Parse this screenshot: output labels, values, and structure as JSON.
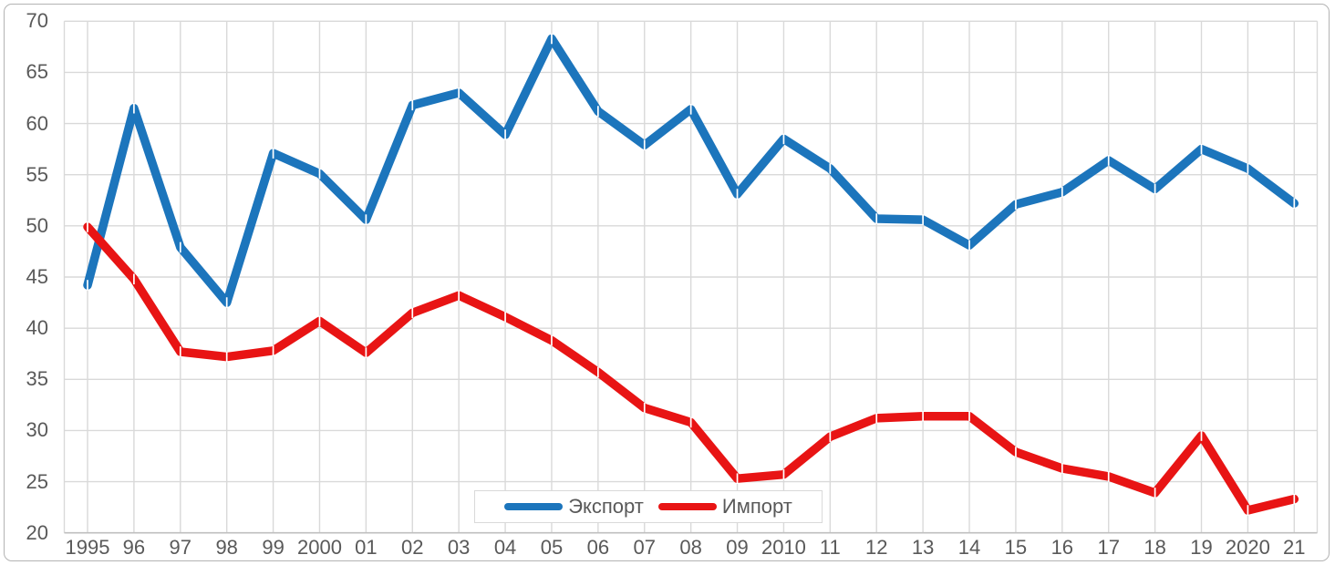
{
  "chart_data": {
    "type": "line",
    "title": "",
    "xlabel": "",
    "ylabel": "",
    "categories": [
      "1995",
      "96",
      "97",
      "98",
      "99",
      "2000",
      "01",
      "02",
      "03",
      "04",
      "05",
      "06",
      "07",
      "08",
      "09",
      "2010",
      "11",
      "12",
      "13",
      "14",
      "15",
      "16",
      "17",
      "18",
      "19",
      "2020",
      "21"
    ],
    "series": [
      {
        "name": "Экспорт",
        "color": "#1c75bc",
        "values": [
          44.2,
          61.5,
          47.9,
          42.5,
          57.1,
          55.1,
          50.6,
          61.8,
          63.0,
          58.9,
          68.3,
          61.2,
          57.9,
          61.4,
          53.1,
          58.5,
          55.6,
          50.7,
          50.6,
          48.1,
          52.1,
          53.3,
          56.4,
          53.6,
          57.5,
          55.6,
          52.2
        ]
      },
      {
        "name": "Импорт",
        "color": "#e81414",
        "values": [
          49.9,
          44.8,
          37.7,
          37.2,
          37.8,
          40.7,
          37.6,
          41.5,
          43.2,
          41.1,
          38.8,
          35.7,
          32.2,
          30.8,
          25.3,
          25.7,
          29.4,
          31.2,
          31.4,
          31.4,
          27.9,
          26.3,
          25.5,
          23.9,
          29.5,
          22.2,
          23.3
        ]
      }
    ],
    "ylim": [
      20,
      70
    ],
    "ytick_step": 5,
    "yticks": [
      "70",
      "65",
      "60",
      "55",
      "50",
      "45",
      "40",
      "35",
      "30",
      "25",
      "20"
    ],
    "grid": true,
    "legend_position": "bottom-center-inside",
    "colors": {
      "gridline": "#d9d9d9",
      "axis_line": "#bfbfbf",
      "tick_text": "#595959",
      "frame_border": "#b3b3b3",
      "background": "#ffffff",
      "vertex_notch": "#ffffff"
    }
  }
}
